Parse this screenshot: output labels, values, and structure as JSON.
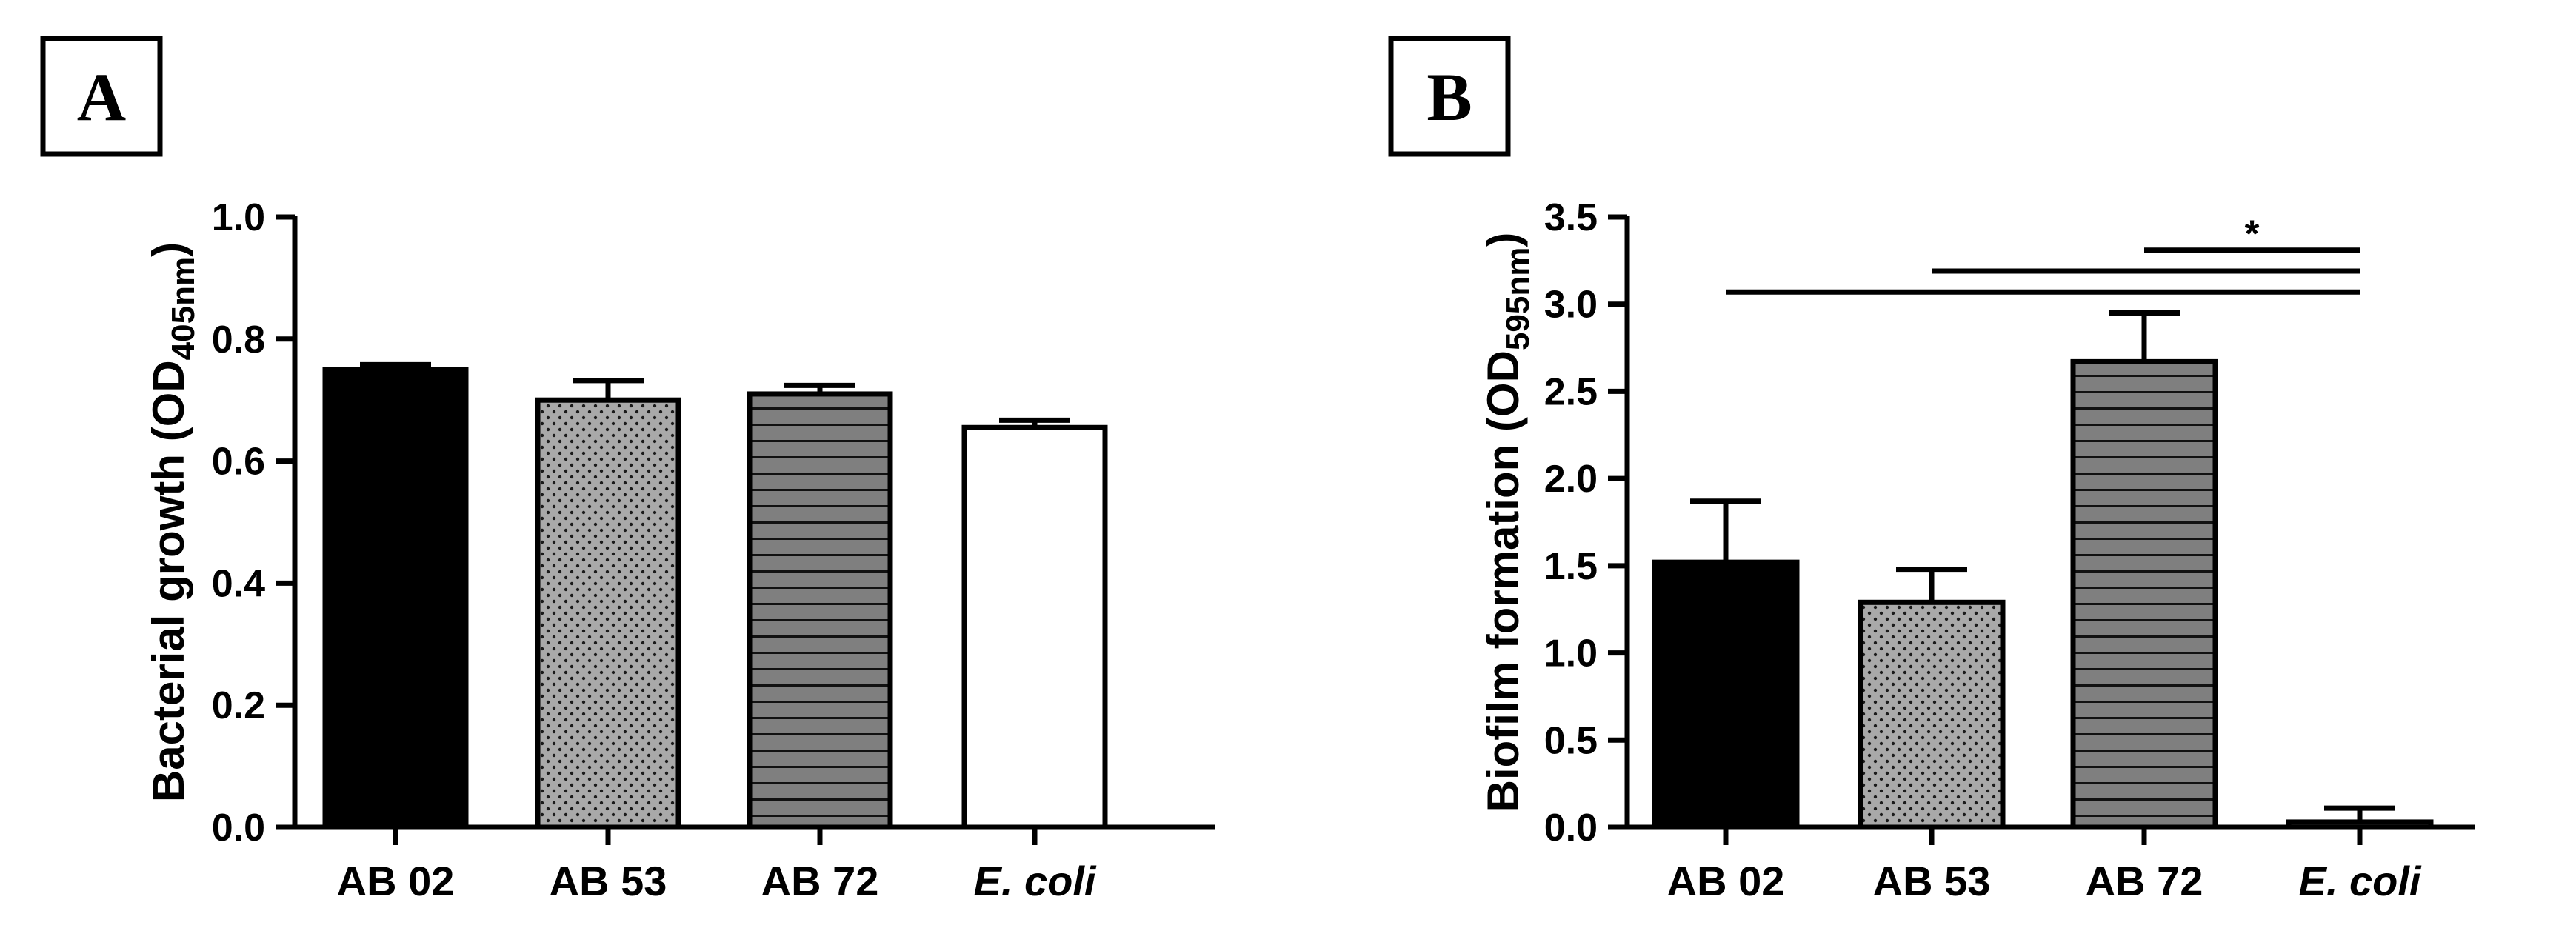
{
  "chart_data": [
    {
      "panel": "A",
      "type": "bar",
      "title": "",
      "xlabel": "",
      "ylabel": "Bacterial growth (OD",
      "ylabel_subscript": "405nm",
      "ylabel_suffix": ")",
      "ylim": [
        0,
        1.0
      ],
      "yticks": [
        "0.0",
        "0.2",
        "0.4",
        "0.6",
        "0.8",
        "1.0"
      ],
      "categories": [
        "AB 02",
        "AB 53",
        "AB 72",
        "E. coli"
      ],
      "italic_categories": [
        false,
        false,
        false,
        true
      ],
      "values": [
        0.75,
        0.7,
        0.71,
        0.655
      ],
      "errors": [
        0.008,
        0.032,
        0.014,
        0.012
      ],
      "patterns": [
        "solid-black",
        "dotted-gray",
        "striped-gray",
        "white"
      ],
      "significance": []
    },
    {
      "panel": "B",
      "type": "bar",
      "title": "",
      "xlabel": "",
      "ylabel": "Biofilm formation (OD",
      "ylabel_subscript": "595nm",
      "ylabel_suffix": ")",
      "ylim": [
        0,
        3.5
      ],
      "yticks": [
        "0.0",
        "0.5",
        "1.0",
        "1.5",
        "2.0",
        "2.5",
        "3.0",
        "3.5"
      ],
      "categories": [
        "AB 02",
        "AB 53",
        "AB 72",
        "E. coli"
      ],
      "italic_categories": [
        false,
        false,
        false,
        true
      ],
      "values": [
        1.52,
        1.29,
        2.67,
        0.03
      ],
      "errors": [
        0.35,
        0.19,
        0.28,
        0.08
      ],
      "patterns": [
        "solid-black",
        "dotted-gray",
        "striped-gray",
        "white"
      ],
      "significance": [
        {
          "from": 0,
          "to": 3,
          "value": 3.07,
          "label": ""
        },
        {
          "from": 1,
          "to": 3,
          "value": 3.19,
          "label": ""
        },
        {
          "from": 2,
          "to": 3,
          "value": 3.31,
          "label": "*"
        }
      ]
    }
  ],
  "colors": {
    "black": "#000000",
    "gray_fill": "#a9a9a9",
    "stripe_fill": "#7f7f7f",
    "white": "#ffffff"
  }
}
